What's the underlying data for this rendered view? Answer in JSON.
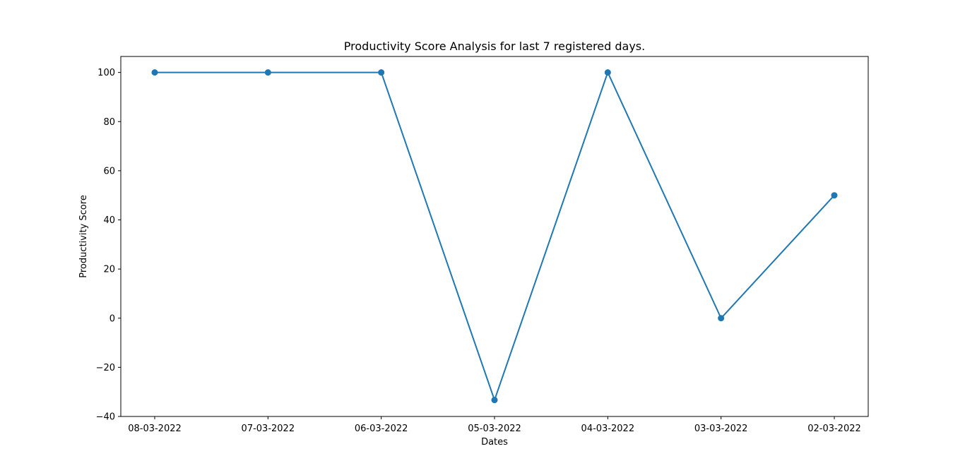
{
  "chart_data": {
    "type": "line",
    "title": "Productivity Score Analysis for last 7 registered days.",
    "xlabel": "Dates",
    "ylabel": "Productivity Score",
    "categories": [
      "08-03-2022",
      "07-03-2022",
      "06-03-2022",
      "05-03-2022",
      "04-03-2022",
      "03-03-2022",
      "02-03-2022"
    ],
    "series": [
      {
        "values": [
          100,
          100,
          100,
          -33.3,
          100,
          0,
          50
        ]
      }
    ],
    "ylim": [
      -40,
      106.5
    ],
    "yticks": [
      -40,
      -20,
      0,
      20,
      40,
      60,
      80,
      100
    ],
    "ytick_labels": [
      "−40",
      "−20",
      "0",
      "20",
      "40",
      "60",
      "80",
      "100"
    ],
    "grid": false,
    "line_color": "#1f77b4",
    "marker": "circle"
  }
}
